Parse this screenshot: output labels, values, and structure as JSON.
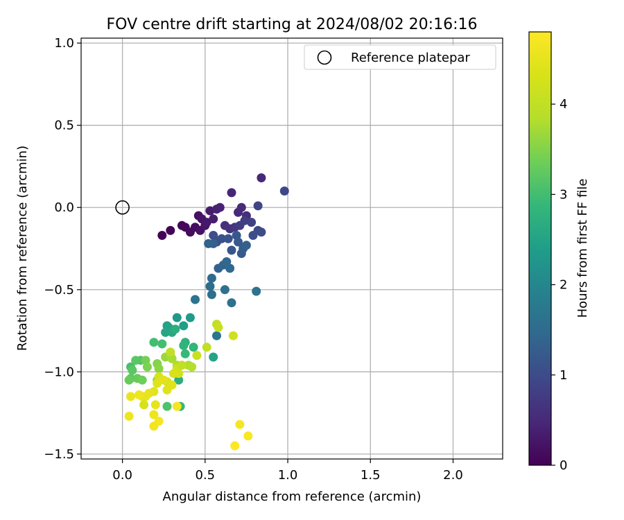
{
  "chart_data": {
    "type": "scatter",
    "title": "FOV centre drift starting at 2024/08/02 20:16:16",
    "xlabel": "Angular distance from reference (arcmin)",
    "ylabel": "Rotation from reference (arcmin)",
    "xlim": [
      -0.25,
      2.3
    ],
    "ylim": [
      -1.53,
      1.03
    ],
    "xticks": [
      0.0,
      0.5,
      1.0,
      1.5,
      2.0
    ],
    "yticks": [
      1.0,
      0.5,
      0.0,
      -0.5,
      -1.0,
      -1.5
    ],
    "xtick_labels": [
      "0.0",
      "0.5",
      "1.0",
      "1.5",
      "2.0"
    ],
    "ytick_labels": [
      "1.0",
      "0.5",
      "0.0",
      "−0.5",
      "−1.0",
      "−1.5"
    ],
    "grid": true,
    "legend": {
      "placement": "upper right",
      "entries": [
        "Reference platepar"
      ]
    },
    "reference_point": {
      "name": "Reference platepar",
      "x": 0.0,
      "y": 0.0,
      "marker": "open-circle"
    },
    "colorbar": {
      "label": "Hours from first FF file",
      "colormap": "viridis",
      "range": [
        0,
        4.8
      ],
      "ticks": [
        0,
        1,
        2,
        3,
        4
      ],
      "tick_labels": [
        "0",
        "1",
        "2",
        "3",
        "4"
      ]
    },
    "points": [
      [
        0.24,
        -0.17,
        0.02
      ],
      [
        0.29,
        -0.14,
        0.05
      ],
      [
        0.36,
        -0.11,
        0.08
      ],
      [
        0.38,
        -0.12,
        0.1
      ],
      [
        0.41,
        -0.15,
        0.12
      ],
      [
        0.44,
        -0.12,
        0.15
      ],
      [
        0.46,
        -0.05,
        0.18
      ],
      [
        0.47,
        -0.14,
        0.2
      ],
      [
        0.48,
        -0.07,
        0.22
      ],
      [
        0.5,
        -0.11,
        0.25
      ],
      [
        0.51,
        -0.09,
        0.28
      ],
      [
        0.53,
        -0.02,
        0.32
      ],
      [
        0.55,
        -0.07,
        0.35
      ],
      [
        0.57,
        -0.01,
        0.4
      ],
      [
        0.59,
        0.0,
        0.42
      ],
      [
        0.66,
        0.09,
        0.45
      ],
      [
        0.7,
        -0.03,
        0.5
      ],
      [
        0.72,
        0.0,
        0.52
      ],
      [
        0.75,
        -0.05,
        0.55
      ],
      [
        0.84,
        0.18,
        0.48
      ],
      [
        0.62,
        -0.11,
        0.6
      ],
      [
        0.65,
        -0.13,
        0.62
      ],
      [
        0.68,
        -0.12,
        0.7
      ],
      [
        0.71,
        -0.11,
        0.75
      ],
      [
        0.74,
        -0.08,
        0.8
      ],
      [
        0.78,
        -0.09,
        0.85
      ],
      [
        0.82,
        0.01,
        0.9
      ],
      [
        0.98,
        0.1,
        0.95
      ],
      [
        0.82,
        -0.14,
        0.98
      ],
      [
        0.84,
        -0.15,
        1.0
      ],
      [
        0.79,
        -0.17,
        1.02
      ],
      [
        0.55,
        -0.17,
        1.05
      ],
      [
        0.57,
        -0.21,
        1.08
      ],
      [
        0.6,
        -0.19,
        1.1
      ],
      [
        0.64,
        -0.19,
        1.12
      ],
      [
        0.66,
        -0.26,
        1.15
      ],
      [
        0.69,
        -0.17,
        1.18
      ],
      [
        0.7,
        -0.21,
        1.2
      ],
      [
        0.72,
        -0.28,
        1.22
      ],
      [
        0.73,
        -0.25,
        1.25
      ],
      [
        0.75,
        -0.23,
        1.3
      ],
      [
        0.55,
        -0.22,
        1.32
      ],
      [
        0.52,
        -0.22,
        1.35
      ],
      [
        0.58,
        -0.37,
        1.38
      ],
      [
        0.61,
        -0.35,
        1.4
      ],
      [
        0.63,
        -0.33,
        1.42
      ],
      [
        0.65,
        -0.37,
        1.45
      ],
      [
        0.54,
        -0.43,
        1.5
      ],
      [
        0.53,
        -0.48,
        1.52
      ],
      [
        0.54,
        -0.53,
        1.55
      ],
      [
        0.62,
        -0.5,
        1.58
      ],
      [
        0.66,
        -0.58,
        1.6
      ],
      [
        0.81,
        -0.51,
        1.62
      ],
      [
        0.44,
        -0.56,
        1.65
      ],
      [
        0.57,
        -0.78,
        1.68
      ],
      [
        0.55,
        -0.91,
        2.5
      ],
      [
        0.33,
        -0.67,
        2.3
      ],
      [
        0.41,
        -0.67,
        2.35
      ],
      [
        0.37,
        -0.72,
        2.4
      ],
      [
        0.27,
        -0.72,
        2.45
      ],
      [
        0.28,
        -0.73,
        2.5
      ],
      [
        0.26,
        -0.76,
        2.55
      ],
      [
        0.3,
        -0.76,
        2.6
      ],
      [
        0.32,
        -0.74,
        2.7
      ],
      [
        0.38,
        -0.82,
        2.75
      ],
      [
        0.37,
        -0.84,
        2.8
      ],
      [
        0.43,
        -0.85,
        2.85
      ],
      [
        0.38,
        -0.89,
        2.9
      ],
      [
        0.19,
        -0.82,
        3.0
      ],
      [
        0.24,
        -0.83,
        3.0
      ],
      [
        0.11,
        -0.93,
        3.1
      ],
      [
        0.05,
        -0.97,
        3.05
      ],
      [
        0.05,
        -1.04,
        3.2
      ],
      [
        0.08,
        -0.93,
        3.2
      ],
      [
        0.09,
        -1.04,
        3.3
      ],
      [
        0.12,
        -1.05,
        3.35
      ],
      [
        0.14,
        -0.93,
        3.4
      ],
      [
        0.15,
        -0.97,
        3.45
      ],
      [
        0.21,
        -0.95,
        3.5
      ],
      [
        0.22,
        -0.98,
        3.55
      ],
      [
        0.21,
        -1.05,
        3.6
      ],
      [
        0.26,
        -0.91,
        3.65
      ],
      [
        0.29,
        -0.9,
        3.7
      ],
      [
        0.3,
        -0.92,
        3.75
      ],
      [
        0.33,
        -0.96,
        3.8
      ],
      [
        0.34,
        -1.05,
        2.7
      ],
      [
        0.35,
        -1.21,
        2.9
      ],
      [
        0.27,
        -1.21,
        3.1
      ],
      [
        0.06,
        -0.99,
        3.2
      ],
      [
        0.04,
        -1.05,
        3.3
      ],
      [
        0.4,
        -0.96,
        3.8
      ],
      [
        0.42,
        -0.97,
        3.85
      ],
      [
        0.45,
        -0.9,
        4.1
      ],
      [
        0.51,
        -0.85,
        4.0
      ],
      [
        0.57,
        -0.71,
        4.0
      ],
      [
        0.58,
        -0.73,
        4.1
      ],
      [
        0.67,
        -0.78,
        4.2
      ],
      [
        0.29,
        -0.88,
        4.0
      ],
      [
        0.33,
        -0.98,
        4.2
      ],
      [
        0.36,
        -0.96,
        4.0
      ],
      [
        0.34,
        -1.01,
        4.25
      ],
      [
        0.31,
        -1.01,
        4.3
      ],
      [
        0.27,
        -1.06,
        4.35
      ],
      [
        0.27,
        -1.11,
        4.4
      ],
      [
        0.22,
        -1.03,
        4.3
      ],
      [
        0.21,
        -1.07,
        4.4
      ],
      [
        0.19,
        -1.12,
        4.45
      ],
      [
        0.16,
        -1.13,
        4.5
      ],
      [
        0.14,
        -1.15,
        4.55
      ],
      [
        0.12,
        -1.15,
        4.5
      ],
      [
        0.1,
        -1.14,
        4.6
      ],
      [
        0.05,
        -1.15,
        4.55
      ],
      [
        0.13,
        -1.2,
        4.3
      ],
      [
        0.2,
        -1.2,
        4.5
      ],
      [
        0.19,
        -1.26,
        4.6
      ],
      [
        0.22,
        -1.3,
        4.7
      ],
      [
        0.19,
        -1.33,
        4.65
      ],
      [
        0.04,
        -1.27,
        4.6
      ],
      [
        0.33,
        -1.21,
        4.7
      ],
      [
        0.71,
        -1.32,
        4.7
      ],
      [
        0.76,
        -1.39,
        4.75
      ],
      [
        0.68,
        -1.45,
        4.8
      ],
      [
        0.25,
        -1.05,
        4.45
      ],
      [
        0.3,
        -1.08,
        4.4
      ]
    ]
  }
}
